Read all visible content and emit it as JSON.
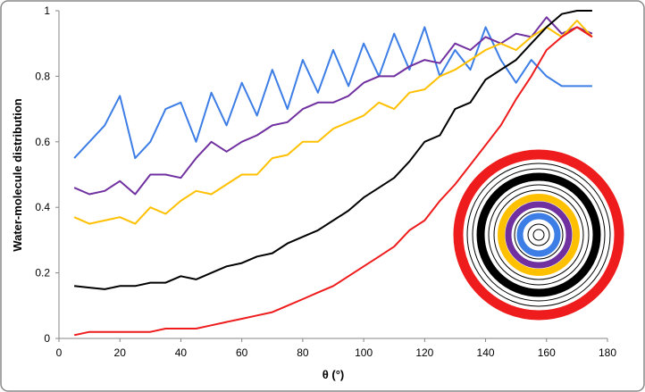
{
  "chart_data": {
    "type": "line",
    "x_label": "θ (°)",
    "y_label": "Water-molecule distribution",
    "x": [
      5,
      10,
      15,
      20,
      25,
      30,
      35,
      40,
      45,
      50,
      55,
      60,
      65,
      70,
      75,
      80,
      85,
      90,
      95,
      100,
      105,
      110,
      115,
      120,
      125,
      130,
      135,
      140,
      145,
      150,
      155,
      160,
      165,
      170,
      175
    ],
    "series": [
      {
        "color": "#3d7ee6",
        "values": [
          0.55,
          0.6,
          0.65,
          0.74,
          0.55,
          0.6,
          0.7,
          0.72,
          0.6,
          0.75,
          0.65,
          0.78,
          0.68,
          0.82,
          0.7,
          0.85,
          0.75,
          0.88,
          0.77,
          0.9,
          0.8,
          0.93,
          0.82,
          0.95,
          0.8,
          0.88,
          0.82,
          0.95,
          0.85,
          0.78,
          0.85,
          0.8,
          0.77,
          0.77,
          0.77
        ]
      },
      {
        "color": "#7030a0",
        "values": [
          0.46,
          0.44,
          0.45,
          0.48,
          0.44,
          0.5,
          0.5,
          0.49,
          0.55,
          0.6,
          0.57,
          0.6,
          0.62,
          0.65,
          0.66,
          0.7,
          0.72,
          0.72,
          0.74,
          0.78,
          0.8,
          0.8,
          0.83,
          0.85,
          0.84,
          0.9,
          0.88,
          0.92,
          0.9,
          0.93,
          0.92,
          0.98,
          0.93,
          0.95,
          0.93
        ]
      },
      {
        "color": "#ffc000",
        "values": [
          0.37,
          0.35,
          0.36,
          0.37,
          0.35,
          0.4,
          0.38,
          0.42,
          0.45,
          0.44,
          0.47,
          0.5,
          0.5,
          0.55,
          0.56,
          0.6,
          0.6,
          0.64,
          0.66,
          0.68,
          0.72,
          0.7,
          0.75,
          0.76,
          0.8,
          0.82,
          0.85,
          0.88,
          0.9,
          0.88,
          0.92,
          0.95,
          0.92,
          0.97,
          0.92
        ]
      },
      {
        "color": "#000000",
        "values": [
          0.16,
          0.155,
          0.15,
          0.16,
          0.16,
          0.17,
          0.17,
          0.19,
          0.18,
          0.2,
          0.22,
          0.23,
          0.25,
          0.26,
          0.29,
          0.31,
          0.33,
          0.36,
          0.39,
          0.43,
          0.46,
          0.49,
          0.54,
          0.6,
          0.62,
          0.7,
          0.72,
          0.79,
          0.82,
          0.85,
          0.9,
          0.95,
          0.99,
          1.0,
          1.0
        ]
      },
      {
        "color": "#ee1c1c",
        "values": [
          0.01,
          0.02,
          0.02,
          0.02,
          0.02,
          0.02,
          0.03,
          0.03,
          0.03,
          0.04,
          0.05,
          0.06,
          0.07,
          0.08,
          0.1,
          0.12,
          0.14,
          0.16,
          0.19,
          0.22,
          0.25,
          0.28,
          0.33,
          0.36,
          0.42,
          0.47,
          0.53,
          0.59,
          0.65,
          0.73,
          0.8,
          0.88,
          0.92,
          0.95,
          0.92
        ]
      }
    ],
    "xlim": [
      0,
      180
    ],
    "xticks": [
      0,
      20,
      40,
      60,
      80,
      100,
      120,
      140,
      160,
      180
    ],
    "ylim": [
      0,
      1
    ],
    "yticks": [
      0,
      0.2,
      0.4,
      0.6,
      0.8,
      1
    ]
  }
}
